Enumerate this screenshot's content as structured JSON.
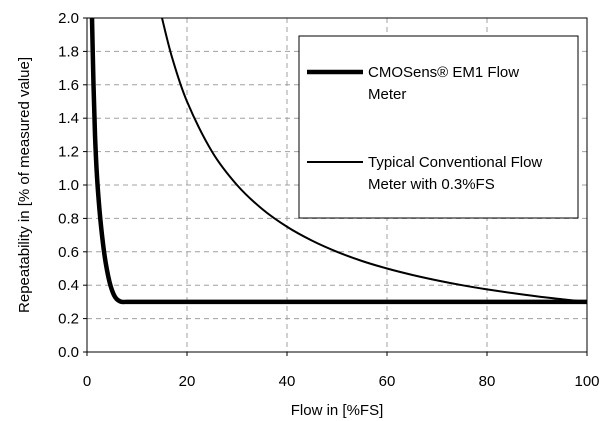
{
  "chart_data": {
    "type": "line",
    "title": "",
    "xlabel": "Flow in [%FS]",
    "ylabel": "Repeatability in [% of measured value]",
    "xlim": [
      0,
      100
    ],
    "ylim": [
      0,
      2.0
    ],
    "xticks": [
      0,
      20,
      40,
      60,
      80,
      100
    ],
    "yticks": [
      0.0,
      0.2,
      0.4,
      0.6,
      0.8,
      1.0,
      1.2,
      1.4,
      1.6,
      1.8,
      2.0
    ],
    "xtick_labels": [
      "0",
      "20",
      "40",
      "60",
      "80",
      "100"
    ],
    "ytick_labels": [
      "0.0",
      "0.2",
      "0.4",
      "0.6",
      "0.8",
      "1.0",
      "1.2",
      "1.4",
      "1.6",
      "1.8",
      "2.0"
    ],
    "grid": true,
    "legend_position": "top-right",
    "series": [
      {
        "name": "CMOSens® EM1 Flow Meter",
        "legend_lines": [
          "CMOSens® EM1 Flow",
          "Meter"
        ],
        "color": "#000000",
        "style": "thick",
        "x": [
          1.0,
          1.3,
          1.6,
          2.0,
          2.5,
          3.0,
          3.5,
          4.0,
          4.5,
          5.0,
          5.5,
          6.0,
          6.5,
          7.0,
          8.0,
          10,
          20,
          40,
          60,
          80,
          100
        ],
        "y": [
          2.0,
          1.6,
          1.3,
          1.05,
          0.85,
          0.7,
          0.58,
          0.49,
          0.42,
          0.37,
          0.335,
          0.315,
          0.305,
          0.3,
          0.3,
          0.3,
          0.3,
          0.3,
          0.3,
          0.3,
          0.3
        ]
      },
      {
        "name": "Typical Conventional Flow Meter with 0.3%FS",
        "legend_lines": [
          "Typical Conventional Flow",
          "Meter with 0.3%FS"
        ],
        "color": "#000000",
        "style": "thin",
        "x": [
          15,
          17,
          20,
          25,
          30,
          35,
          40,
          45,
          50,
          55,
          60,
          65,
          70,
          75,
          80,
          85,
          90,
          95,
          100
        ],
        "y": [
          2.0,
          1.765,
          1.5,
          1.2,
          1.0,
          0.857,
          0.75,
          0.667,
          0.6,
          0.545,
          0.5,
          0.462,
          0.429,
          0.4,
          0.375,
          0.353,
          0.333,
          0.316,
          0.3
        ]
      }
    ]
  }
}
